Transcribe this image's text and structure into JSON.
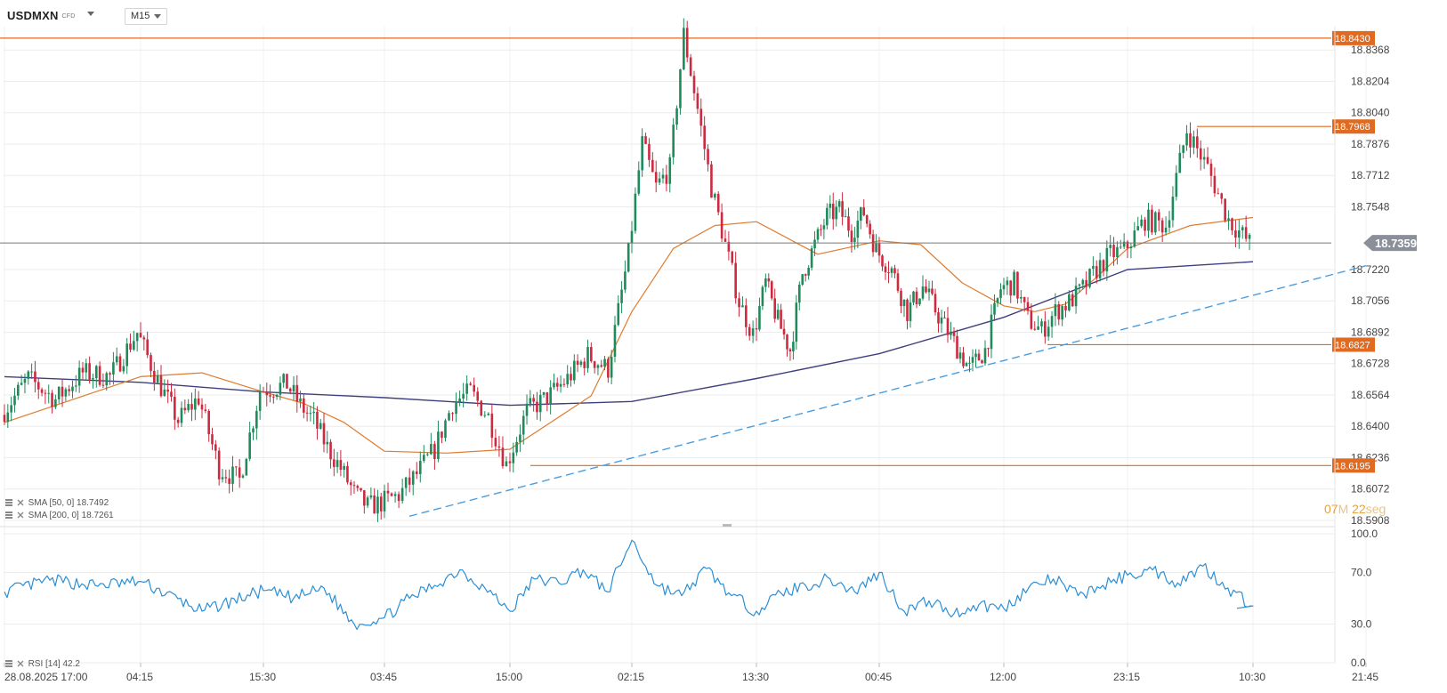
{
  "toolbar": {
    "symbol": "USDMXN",
    "instrument_type": "CFD",
    "timeframe": "M15"
  },
  "indicators": {
    "sma50_label": "SMA [50, 0] 18.7492",
    "sma200_label": "SMA [200, 0] 18.7261",
    "rsi_label": "RSI [14] 42.2"
  },
  "countdown": {
    "minutes": "07",
    "minutes_unit": "M",
    "seconds": "22",
    "seconds_unit": "seg"
  },
  "colors": {
    "bull": "#1f8a5b",
    "bear": "#cc2a3f",
    "sma50": "#e07b2e",
    "sma200": "#3f3f7f",
    "rsi": "#2a8fd6",
    "level": "#e06a1f",
    "trend": "#4a9ee0",
    "current": "#555555"
  },
  "chart_data": [
    {
      "type": "candlestick",
      "symbol": "USDMXN",
      "timeframe": "M15",
      "price_axis_ticks": [
        "18.8368",
        "18.8204",
        "18.8040",
        "18.7876",
        "18.7712",
        "18.7548",
        "18.7220",
        "18.7056",
        "18.6892",
        "18.6728",
        "18.6564",
        "18.6400",
        "18.6236",
        "18.6072",
        "18.5908"
      ],
      "time_axis_ticks": [
        "28.08.2025 17:00",
        "04:15",
        "15:30",
        "03:45",
        "15:00",
        "02:15",
        "13:30",
        "00:45",
        "12:00",
        "23:15",
        "10:30",
        "21:45"
      ],
      "ylim": [
        18.5908,
        18.849
      ],
      "current_price": {
        "label": "18.7359",
        "value": 18.7359
      },
      "horizontal_levels": [
        {
          "label": "18.8430",
          "value": 18.843
        },
        {
          "label": "18.7968",
          "value": 18.7968
        },
        {
          "label": "18.6827",
          "value": 18.6827
        },
        {
          "label": "18.6195",
          "value": 18.6195
        }
      ],
      "trendline": {
        "from": {
          "time": "03:45",
          "price": 18.593
        },
        "to": {
          "time": "21:45",
          "price": 18.724
        }
      },
      "price_path": [
        [
          "28.08.2025 17:00",
          18.646
        ],
        [
          null,
          18.665
        ],
        [
          null,
          18.654
        ],
        [
          null,
          18.668
        ],
        [
          null,
          18.666
        ],
        [
          "04:15",
          18.689
        ],
        [
          null,
          18.664
        ],
        [
          null,
          18.643
        ],
        [
          null,
          18.655
        ],
        [
          null,
          18.618
        ],
        [
          null,
          18.612
        ],
        [
          "15:30",
          18.659
        ],
        [
          null,
          18.66
        ],
        [
          null,
          18.662
        ],
        [
          null,
          18.651
        ],
        [
          null,
          18.643
        ],
        [
          null,
          18.629
        ],
        [
          null,
          18.618
        ],
        [
          null,
          18.605
        ],
        [
          null,
          18.598
        ],
        [
          "03:45",
          18.6
        ],
        [
          null,
          18.604
        ],
        [
          null,
          18.615
        ],
        [
          null,
          18.628
        ],
        [
          null,
          18.652
        ],
        [
          null,
          18.658
        ],
        [
          null,
          18.645
        ],
        [
          "15:00",
          18.62
        ],
        [
          null,
          18.648
        ],
        [
          null,
          18.655
        ],
        [
          null,
          18.665
        ],
        [
          null,
          18.677
        ],
        [
          null,
          18.67
        ],
        [
          "02:15",
          18.73
        ],
        [
          null,
          18.788
        ],
        [
          null,
          18.765
        ],
        [
          null,
          18.775
        ],
        [
          null,
          18.845
        ],
        [
          null,
          18.806
        ],
        [
          null,
          18.765
        ],
        [
          null,
          18.735
        ],
        [
          null,
          18.705
        ],
        [
          "13:30",
          18.688
        ],
        [
          null,
          18.715
        ],
        [
          null,
          18.695
        ],
        [
          null,
          18.68
        ],
        [
          null,
          18.72
        ],
        [
          null,
          18.735
        ],
        [
          null,
          18.75
        ],
        [
          null,
          18.753
        ],
        [
          null,
          18.742
        ],
        [
          null,
          18.752
        ],
        [
          "00:45",
          18.732
        ],
        [
          null,
          18.722
        ],
        [
          null,
          18.7
        ],
        [
          null,
          18.713
        ],
        [
          null,
          18.698
        ],
        [
          null,
          18.684
        ],
        [
          null,
          18.67
        ],
        [
          null,
          18.68
        ],
        [
          "12:00",
          18.712
        ],
        [
          null,
          18.715
        ],
        [
          null,
          18.696
        ],
        [
          null,
          18.69
        ],
        [
          null,
          18.7
        ],
        [
          null,
          18.705
        ],
        [
          null,
          18.712
        ],
        [
          null,
          18.722
        ],
        [
          null,
          18.73
        ],
        [
          "23:15",
          18.732
        ],
        [
          null,
          18.748
        ],
        [
          null,
          18.745
        ],
        [
          null,
          18.795
        ],
        [
          null,
          18.775
        ],
        [
          null,
          18.748
        ],
        [
          "10:30",
          18.7359
        ]
      ]
    },
    {
      "type": "line",
      "name": "SMA [50, 0]",
      "label": "18.7492",
      "path": [
        [
          "28.08.2025 17:00",
          18.642
        ],
        [
          "04:15",
          18.666
        ],
        [
          null,
          18.668
        ],
        [
          "15:30",
          18.658
        ],
        [
          null,
          18.652
        ],
        [
          null,
          18.642
        ],
        [
          "03:45",
          18.627
        ],
        [
          null,
          18.626
        ],
        [
          "15:00",
          18.628
        ],
        [
          null,
          18.642
        ],
        [
          null,
          18.656
        ],
        [
          "02:15",
          18.7
        ],
        [
          null,
          18.733
        ],
        [
          null,
          18.745
        ],
        [
          "13:30",
          18.747
        ],
        [
          null,
          18.73
        ],
        [
          "00:45",
          18.737
        ],
        [
          null,
          18.735
        ],
        [
          null,
          18.715
        ],
        [
          "12:00",
          18.703
        ],
        [
          null,
          18.7
        ],
        [
          null,
          18.704
        ],
        [
          null,
          18.718
        ],
        [
          "23:15",
          18.733
        ],
        [
          null,
          18.745
        ],
        [
          "10:30",
          18.7492
        ]
      ]
    },
    {
      "type": "line",
      "name": "SMA [200, 0]",
      "label": "18.7261",
      "path": [
        [
          "28.08.2025 17:00",
          18.666
        ],
        [
          "04:15",
          18.663
        ],
        [
          "15:30",
          18.658
        ],
        [
          "03:45",
          18.655
        ],
        [
          "15:00",
          18.651
        ],
        [
          "02:15",
          18.653
        ],
        [
          "13:30",
          18.665
        ],
        [
          "00:45",
          18.678
        ],
        [
          "12:00",
          18.697
        ],
        [
          "23:15",
          18.722
        ],
        [
          "10:30",
          18.7261
        ]
      ]
    },
    {
      "type": "line",
      "name": "RSI [14]",
      "label": "42.2",
      "axis_ticks": [
        "100.0",
        "70.0",
        "30.0",
        "0.0"
      ],
      "ylim": [
        0,
        100
      ],
      "path": [
        [
          "28.08.2025 17:00",
          55
        ],
        [
          null,
          64
        ],
        [
          null,
          60
        ],
        [
          "04:15",
          63
        ],
        [
          null,
          40
        ],
        [
          "15:30",
          56
        ],
        [
          null,
          50
        ],
        [
          null,
          58
        ],
        [
          null,
          30
        ],
        [
          "03:45",
          35
        ],
        [
          null,
          50
        ],
        [
          null,
          60
        ],
        [
          null,
          72
        ],
        [
          null,
          58
        ],
        [
          "15:00",
          40
        ],
        [
          null,
          65
        ],
        [
          null,
          62
        ],
        [
          null,
          72
        ],
        [
          null,
          55
        ],
        [
          "02:15",
          95
        ],
        [
          null,
          60
        ],
        [
          null,
          52
        ],
        [
          null,
          73
        ],
        [
          null,
          52
        ],
        [
          "13:30",
          40
        ],
        [
          null,
          54
        ],
        [
          null,
          60
        ],
        [
          null,
          65
        ],
        [
          null,
          55
        ],
        [
          "00:45",
          70
        ],
        [
          null,
          40
        ],
        [
          null,
          48
        ],
        [
          null,
          38
        ],
        [
          null,
          45
        ],
        [
          "12:00",
          42
        ],
        [
          null,
          58
        ],
        [
          null,
          65
        ],
        [
          null,
          52
        ],
        [
          null,
          60
        ],
        [
          "23:15",
          68
        ],
        [
          null,
          72
        ],
        [
          null,
          62
        ],
        [
          null,
          75
        ],
        [
          null,
          58
        ],
        [
          "10:30",
          44
        ],
        [
          null,
          42.2
        ]
      ]
    }
  ]
}
